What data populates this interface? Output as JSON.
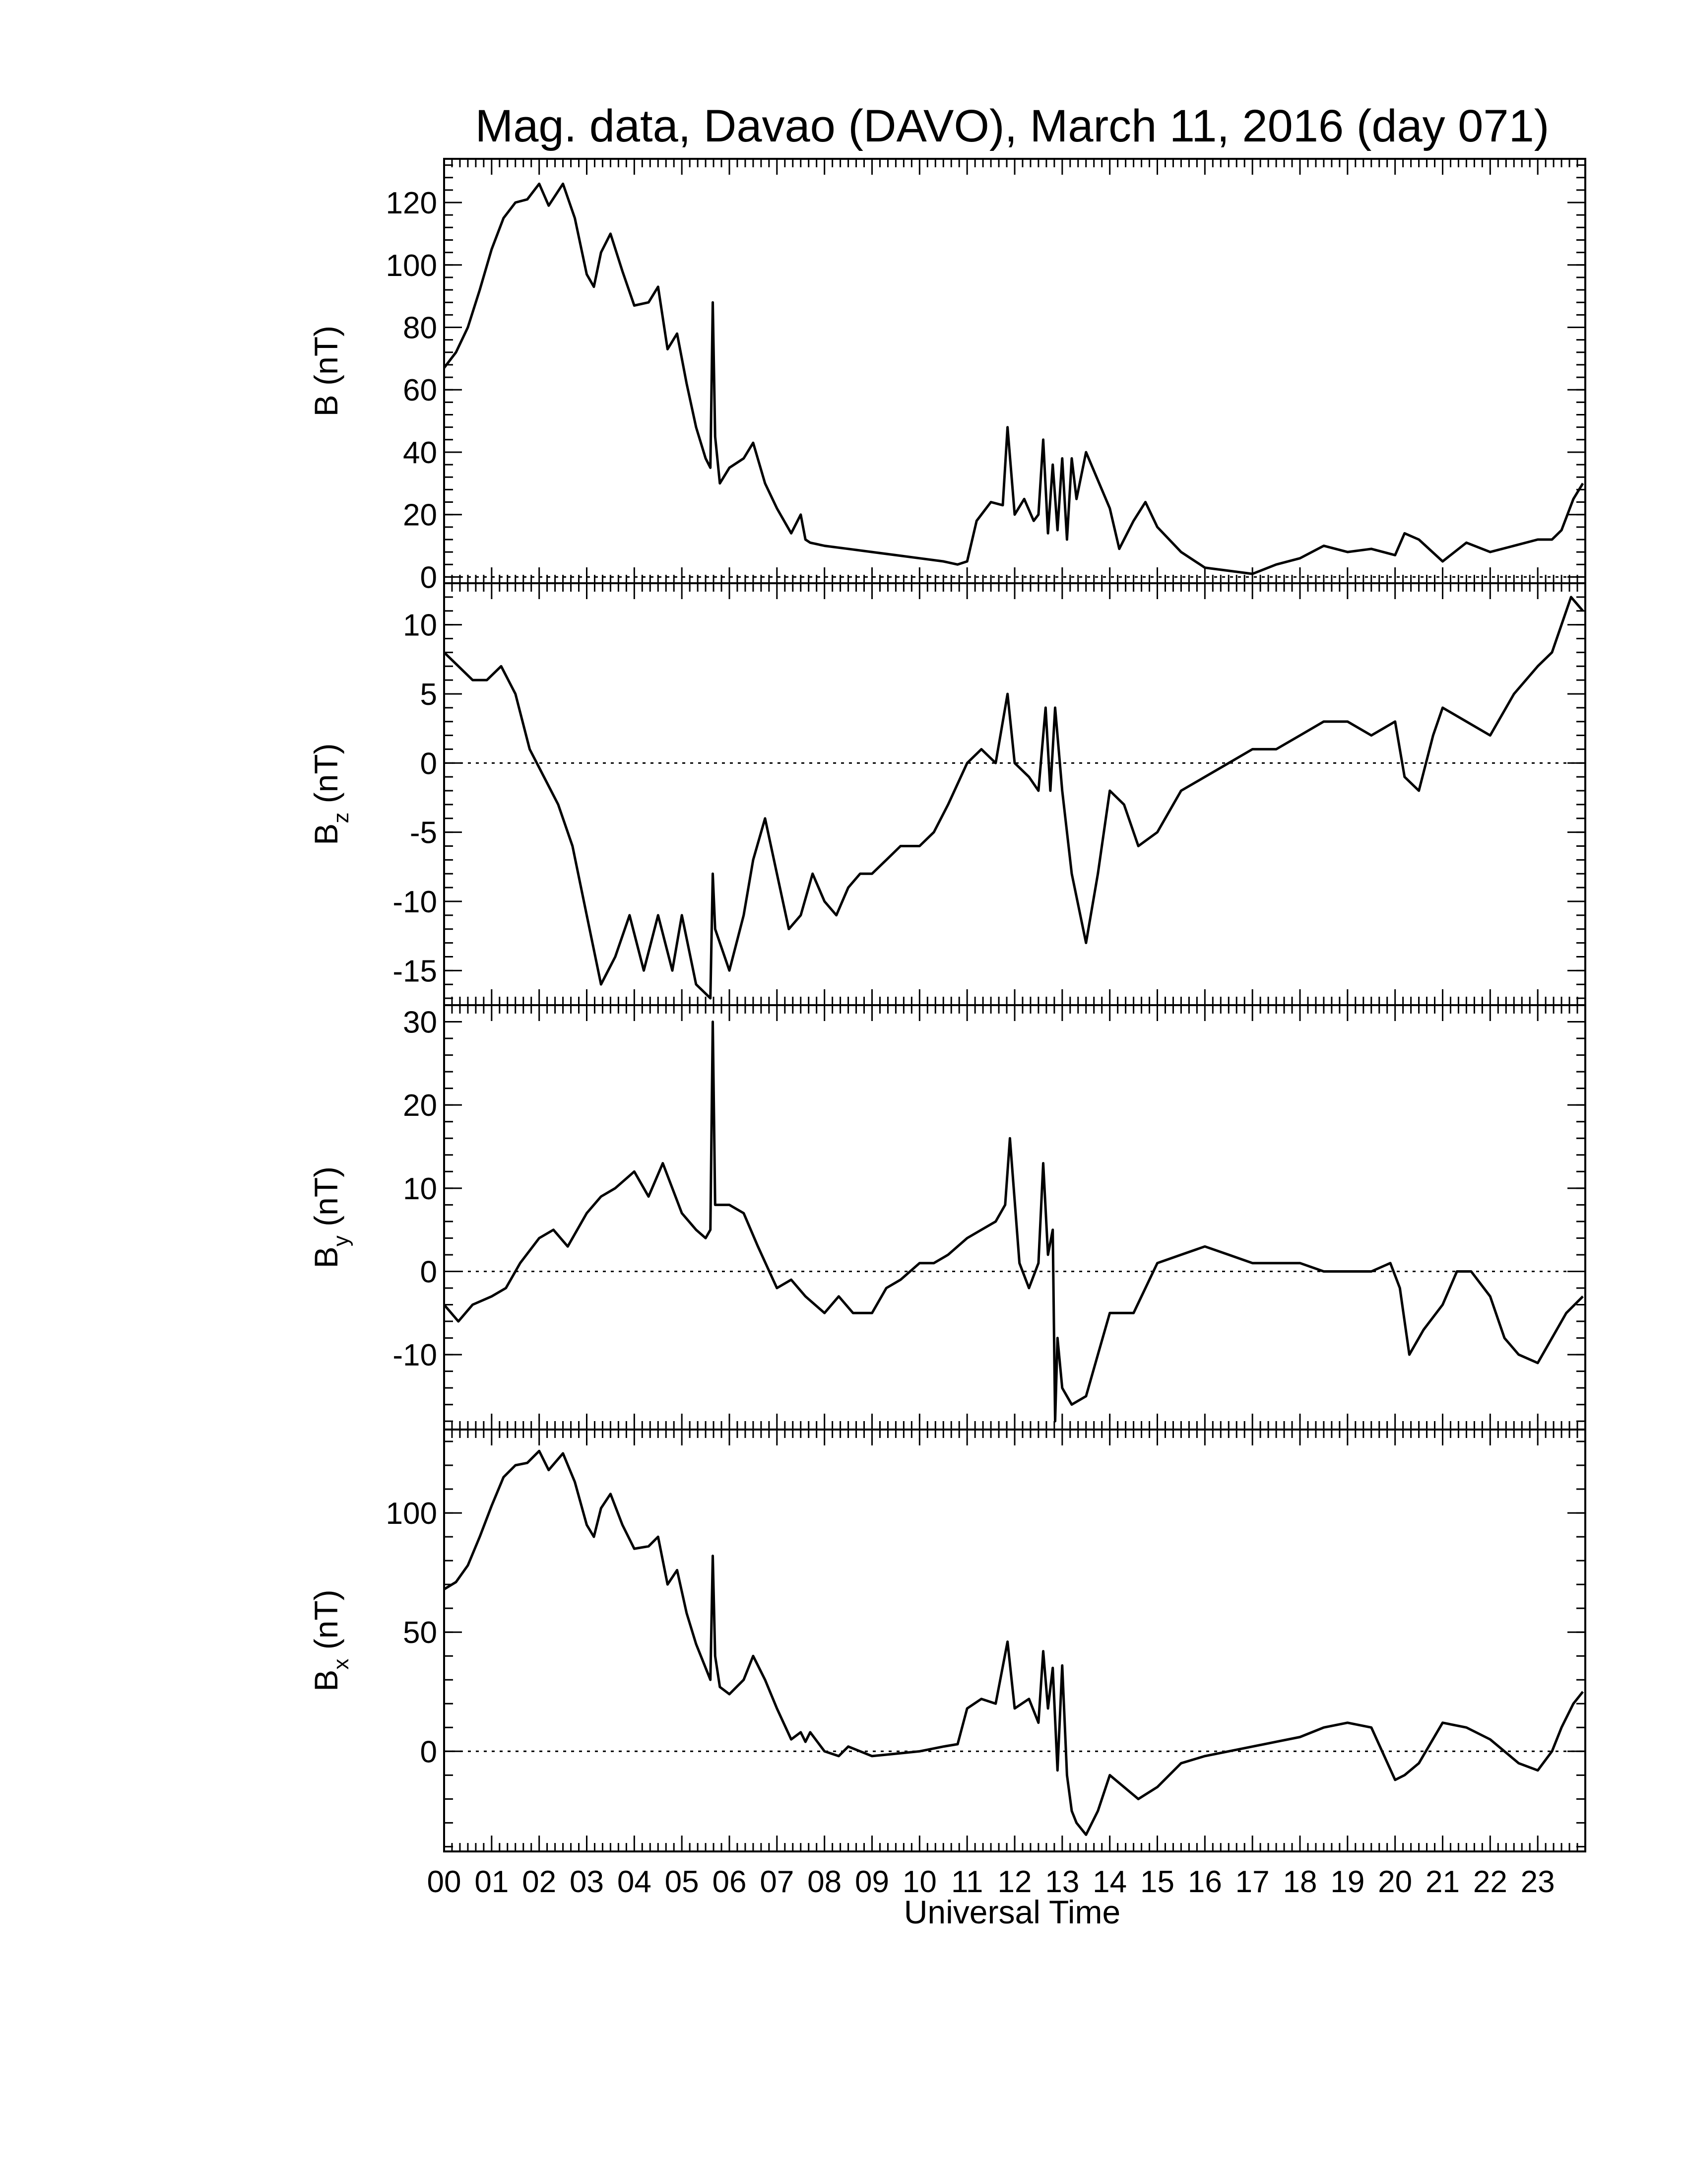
{
  "chart_data": {
    "type": "line",
    "title": "Mag. data, Davao (DAVO), March 11, 2016 (day 071)",
    "xlabel": "Universal Time",
    "x_tick_labels": [
      "00",
      "01",
      "02",
      "03",
      "04",
      "05",
      "06",
      "07",
      "08",
      "09",
      "10",
      "11",
      "12",
      "13",
      "14",
      "15",
      "16",
      "17",
      "18",
      "19",
      "20",
      "21",
      "22",
      "23"
    ],
    "xlim": [
      0,
      24
    ],
    "grid": false,
    "panels": [
      {
        "id": "B",
        "ylabel": "B (nT)",
        "ylabel_main": "B",
        "ylabel_sub": "",
        "ylabel_unit": " (nT)",
        "ylim": [
          -2,
          134
        ],
        "yticks": [
          0,
          20,
          40,
          60,
          80,
          100,
          120
        ],
        "ytick_labels": [
          "0",
          "20",
          "40",
          "60",
          "80",
          "100",
          "120"
        ],
        "zero_line": true,
        "series": [
          {
            "x": [
              0,
              0.25,
              0.5,
              0.75,
              1.0,
              1.25,
              1.5,
              1.75,
              2.0,
              2.2,
              2.5,
              2.75,
              3.0,
              3.15,
              3.3,
              3.5,
              3.75,
              4.0,
              4.3,
              4.5,
              4.7,
              4.9,
              5.1,
              5.3,
              5.5,
              5.6,
              5.65,
              5.7,
              5.8,
              6.0,
              6.3,
              6.5,
              6.75,
              7.0,
              7.3,
              7.5,
              7.6,
              7.7,
              8.0,
              8.5,
              9.0,
              9.5,
              10.0,
              10.5,
              10.8,
              11.0,
              11.2,
              11.5,
              11.75,
              11.85,
              12.0,
              12.2,
              12.4,
              12.5,
              12.6,
              12.7,
              12.8,
              12.9,
              13.0,
              13.1,
              13.2,
              13.3,
              13.5,
              13.75,
              14.0,
              14.2,
              14.5,
              14.75,
              15.0,
              15.5,
              16.0,
              16.5,
              17.0,
              17.5,
              18.0,
              18.5,
              19.0,
              19.5,
              20.0,
              20.2,
              20.5,
              21.0,
              21.5,
              22.0,
              22.5,
              23.0,
              23.3,
              23.5,
              23.75,
              23.95
            ],
            "y": [
              67,
              72,
              80,
              92,
              105,
              115,
              120,
              121,
              126,
              119,
              126,
              115,
              97,
              93,
              104,
              110,
              98,
              87,
              88,
              93,
              73,
              78,
              62,
              48,
              38,
              35,
              88,
              45,
              30,
              35,
              38,
              43,
              30,
              22,
              14,
              20,
              12,
              11,
              10,
              9,
              8,
              7,
              6,
              5,
              4,
              5,
              18,
              24,
              23,
              48,
              20,
              25,
              18,
              20,
              44,
              14,
              36,
              15,
              38,
              12,
              38,
              25,
              40,
              31,
              22,
              9,
              18,
              24,
              16,
              8,
              3,
              2,
              1,
              4,
              6,
              10,
              8,
              9,
              7,
              14,
              12,
              5,
              11,
              8,
              10,
              12,
              12,
              15,
              25,
              30
            ]
          }
        ]
      },
      {
        "id": "Bz",
        "ylabel": "Bz (nT)",
        "ylabel_main": "B",
        "ylabel_sub": "z",
        "ylabel_unit": " (nT)",
        "ylim": [
          -17.5,
          13
        ],
        "yticks": [
          -15,
          -10,
          -5,
          0,
          5,
          10
        ],
        "ytick_labels": [
          "-15",
          "-10",
          "-5",
          "0",
          "5",
          "10"
        ],
        "zero_line": true,
        "series": [
          {
            "x": [
              0,
              0.3,
              0.6,
              0.9,
              1.2,
              1.5,
              1.8,
              2.1,
              2.4,
              2.7,
              3.0,
              3.3,
              3.6,
              3.9,
              4.2,
              4.5,
              4.8,
              5.0,
              5.3,
              5.6,
              5.65,
              5.7,
              6.0,
              6.3,
              6.5,
              6.75,
              7.0,
              7.25,
              7.5,
              7.75,
              8.0,
              8.25,
              8.5,
              8.75,
              9.0,
              9.3,
              9.6,
              10.0,
              10.3,
              10.6,
              11.0,
              11.3,
              11.6,
              11.85,
              12.0,
              12.3,
              12.5,
              12.65,
              12.75,
              12.85,
              13.0,
              13.2,
              13.5,
              13.75,
              14.0,
              14.3,
              14.6,
              15.0,
              15.5,
              16.0,
              16.5,
              17.0,
              17.5,
              18.0,
              18.5,
              19.0,
              19.5,
              20.0,
              20.2,
              20.5,
              20.8,
              21.0,
              21.5,
              22.0,
              22.5,
              23.0,
              23.3,
              23.5,
              23.7,
              23.95
            ],
            "y": [
              8,
              7,
              6,
              6,
              7,
              5,
              1,
              -1,
              -3,
              -6,
              -11,
              -16,
              -14,
              -11,
              -15,
              -11,
              -15,
              -11,
              -16,
              -17,
              -8,
              -12,
              -15,
              -11,
              -7,
              -4,
              -8,
              -12,
              -11,
              -8,
              -10,
              -11,
              -9,
              -8,
              -8,
              -7,
              -6,
              -6,
              -5,
              -3,
              0,
              1,
              0,
              5,
              0,
              -1,
              -2,
              4,
              -2,
              4,
              -2,
              -8,
              -13,
              -8,
              -2,
              -3,
              -6,
              -5,
              -2,
              -1,
              0,
              1,
              1,
              2,
              3,
              3,
              2,
              3,
              -1,
              -2,
              2,
              4,
              3,
              2,
              5,
              7,
              8,
              10,
              12,
              11
            ]
          }
        ]
      },
      {
        "id": "By",
        "ylabel": "By (nT)",
        "ylabel_main": "B",
        "ylabel_sub": "y",
        "ylabel_unit": " (nT)",
        "ylim": [
          -19,
          32
        ],
        "yticks": [
          -10,
          0,
          10,
          20,
          30
        ],
        "ytick_labels": [
          "-10",
          "0",
          "10",
          "20",
          "30"
        ],
        "zero_line": true,
        "series": [
          {
            "x": [
              0,
              0.3,
              0.6,
              1.0,
              1.3,
              1.6,
              2.0,
              2.3,
              2.6,
              3.0,
              3.3,
              3.6,
              4.0,
              4.3,
              4.6,
              5.0,
              5.3,
              5.5,
              5.6,
              5.65,
              5.7,
              6.0,
              6.3,
              6.6,
              7.0,
              7.3,
              7.6,
              8.0,
              8.3,
              8.6,
              9.0,
              9.3,
              9.6,
              10.0,
              10.3,
              10.6,
              11.0,
              11.3,
              11.6,
              11.8,
              11.9,
              12.1,
              12.3,
              12.5,
              12.6,
              12.7,
              12.8,
              12.85,
              12.9,
              13.0,
              13.2,
              13.5,
              13.75,
              14.0,
              14.5,
              15.0,
              15.5,
              16.0,
              16.5,
              17.0,
              17.5,
              18.0,
              18.5,
              19.0,
              19.5,
              19.9,
              20.1,
              20.3,
              20.6,
              21.0,
              21.3,
              21.6,
              22.0,
              22.3,
              22.6,
              23.0,
              23.3,
              23.6,
              23.95
            ],
            "y": [
              -4,
              -6,
              -4,
              -3,
              -2,
              1,
              4,
              5,
              3,
              7,
              9,
              10,
              12,
              9,
              13,
              7,
              5,
              4,
              5,
              30,
              8,
              8,
              7,
              3,
              -2,
              -1,
              -3,
              -5,
              -3,
              -5,
              -5,
              -2,
              -1,
              1,
              1,
              2,
              4,
              5,
              6,
              8,
              16,
              1,
              -2,
              1,
              13,
              2,
              5,
              -18,
              -8,
              -14,
              -16,
              -15,
              -10,
              -5,
              -5,
              1,
              2,
              3,
              2,
              1,
              1,
              1,
              0,
              0,
              0,
              1,
              -2,
              -10,
              -7,
              -4,
              0,
              0,
              -3,
              -8,
              -10,
              -11,
              -8,
              -5,
              -3
            ]
          }
        ]
      },
      {
        "id": "Bx",
        "ylabel": "Bx (nT)",
        "ylabel_main": "B",
        "ylabel_sub": "x",
        "ylabel_unit": " (nT)",
        "ylim": [
          -42,
          135
        ],
        "yticks": [
          0,
          50,
          100
        ],
        "ytick_labels": [
          "0",
          "50",
          "100"
        ],
        "zero_line": true,
        "series": [
          {
            "x": [
              0,
              0.25,
              0.5,
              0.75,
              1.0,
              1.25,
              1.5,
              1.75,
              2.0,
              2.2,
              2.5,
              2.75,
              3.0,
              3.15,
              3.3,
              3.5,
              3.75,
              4.0,
              4.3,
              4.5,
              4.7,
              4.9,
              5.1,
              5.3,
              5.5,
              5.6,
              5.65,
              5.7,
              5.8,
              6.0,
              6.3,
              6.5,
              6.75,
              7.0,
              7.3,
              7.5,
              7.6,
              7.7,
              8.0,
              8.3,
              8.5,
              9.0,
              9.5,
              10.0,
              10.5,
              10.8,
              11.0,
              11.3,
              11.6,
              11.85,
              12.0,
              12.3,
              12.5,
              12.6,
              12.7,
              12.8,
              12.9,
              13.0,
              13.1,
              13.2,
              13.3,
              13.5,
              13.75,
              14.0,
              14.3,
              14.6,
              15.0,
              15.5,
              16.0,
              16.5,
              17.0,
              17.5,
              18.0,
              18.5,
              19.0,
              19.5,
              20.0,
              20.2,
              20.5,
              21.0,
              21.5,
              22.0,
              22.3,
              22.6,
              23.0,
              23.3,
              23.5,
              23.75,
              23.95
            ],
            "y": [
              68,
              71,
              78,
              90,
              103,
              115,
              120,
              121,
              126,
              118,
              125,
              113,
              95,
              90,
              102,
              108,
              95,
              85,
              86,
              90,
              70,
              76,
              58,
              45,
              35,
              30,
              82,
              40,
              27,
              24,
              30,
              40,
              30,
              18,
              5,
              8,
              4,
              8,
              0,
              -2,
              2,
              -2,
              -1,
              0,
              2,
              3,
              18,
              22,
              20,
              46,
              18,
              22,
              12,
              42,
              18,
              35,
              -8,
              36,
              -10,
              -25,
              -30,
              -35,
              -25,
              -10,
              -15,
              -20,
              -15,
              -5,
              -2,
              0,
              2,
              4,
              6,
              10,
              12,
              10,
              -12,
              -10,
              -5,
              12,
              10,
              5,
              0,
              -5,
              -8,
              0,
              10,
              20,
              25
            ]
          }
        ]
      }
    ]
  }
}
